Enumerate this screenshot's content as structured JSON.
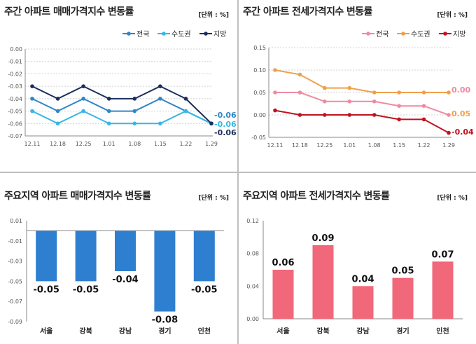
{
  "chart_data": [
    {
      "type": "line",
      "title": "주간 아파트 매매가격지수 변동률",
      "unit": "[단위 : %]",
      "categories": [
        "12.11",
        "12.18",
        "12.25",
        "1.01",
        "1.08",
        "1.15",
        "1.22",
        "1.29"
      ],
      "ylim": [
        -0.07,
        0.0
      ],
      "yticks": [
        "0.00",
        "-0.01",
        "-0.02",
        "-0.03",
        "-0.04",
        "-0.05",
        "-0.06",
        "-0.07"
      ],
      "series": [
        {
          "name": "전국",
          "color": "#2f86c8",
          "values": [
            -0.04,
            -0.05,
            -0.04,
            -0.05,
            -0.05,
            -0.04,
            -0.05,
            -0.06
          ],
          "end_label": "-0.06"
        },
        {
          "name": "수도권",
          "color": "#38b6e6",
          "values": [
            -0.05,
            -0.06,
            -0.05,
            -0.06,
            -0.06,
            -0.06,
            -0.05,
            -0.06
          ],
          "end_label": "-0.06"
        },
        {
          "name": "지방",
          "color": "#1c2e5c",
          "values": [
            -0.03,
            -0.04,
            -0.03,
            -0.04,
            -0.04,
            -0.03,
            -0.04,
            -0.06
          ],
          "end_label": "-0.06"
        }
      ]
    },
    {
      "type": "line",
      "title": "주간 아파트 전세가격지수 변동률",
      "unit": "[단위 : %]",
      "categories": [
        "12.11",
        "12.18",
        "12.25",
        "1.01",
        "1.08",
        "1.15",
        "1.22",
        "1.29"
      ],
      "ylim": [
        -0.05,
        0.15
      ],
      "yticks": [
        "0.15",
        "0.10",
        "0.05",
        "0.00",
        "-0.05"
      ],
      "series": [
        {
          "name": "전국",
          "color": "#f08aa0",
          "values": [
            0.05,
            0.05,
            0.03,
            0.03,
            0.03,
            0.02,
            0.02,
            0.0
          ],
          "end_label": "0.00"
        },
        {
          "name": "수도권",
          "color": "#f0a04a",
          "values": [
            0.1,
            0.09,
            0.06,
            0.06,
            0.05,
            0.05,
            0.05,
            0.05
          ],
          "end_label": "0.05"
        },
        {
          "name": "지방",
          "color": "#c0121f",
          "values": [
            0.01,
            0.0,
            0.0,
            0.0,
            0.0,
            -0.01,
            -0.01,
            -0.04
          ],
          "end_label": "-0.04"
        }
      ]
    },
    {
      "type": "bar",
      "title": "주요지역 아파트 매매가격지수 변동률",
      "unit": "[단위 : %]",
      "categories": [
        "서울",
        "강북",
        "강남",
        "경기",
        "인천"
      ],
      "values": [
        -0.05,
        -0.05,
        -0.04,
        -0.08,
        -0.05
      ],
      "labels": [
        "-0.05",
        "-0.05",
        "-0.04",
        "-0.08",
        "-0.05"
      ],
      "ylim": [
        -0.09,
        0.01
      ],
      "yticks": [
        "0.01",
        "-0.01",
        "-0.03",
        "-0.05",
        "-0.07",
        "-0.09"
      ],
      "color": "#2e7fd0"
    },
    {
      "type": "bar",
      "title": "주요지역 아파트 전세가격지수 변동률",
      "unit": "[단위 : %]",
      "categories": [
        "서울",
        "강북",
        "강남",
        "경기",
        "인천"
      ],
      "values": [
        0.06,
        0.09,
        0.04,
        0.05,
        0.07
      ],
      "labels": [
        "0.06",
        "0.09",
        "0.04",
        "0.05",
        "0.07"
      ],
      "ylim": [
        0.0,
        0.12
      ],
      "yticks": [
        "0.12",
        "0.08",
        "0.04",
        "0.00"
      ],
      "color": "#f0687a"
    }
  ]
}
